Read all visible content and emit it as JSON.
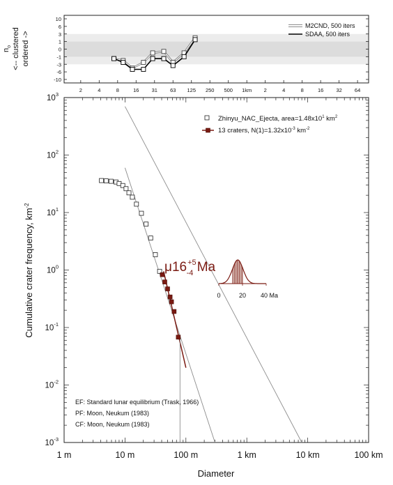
{
  "chart_data": [
    {
      "type": "line",
      "name": "randomness-analysis",
      "ylabel_lines": [
        "n",
        "<-- clustered",
        "ordered ->"
      ],
      "ylabel_subscript": "o",
      "y_ticks": [
        "10",
        "6",
        "3",
        "1",
        "0",
        "-1",
        "-3",
        "-6",
        "-10"
      ],
      "x_ticks": [
        "2",
        "4",
        "8",
        "16",
        "31",
        "63",
        "125",
        "250",
        "500",
        "1km",
        "2",
        "4",
        "8",
        "16",
        "32",
        "64"
      ],
      "legend": [
        "M2CND, 500 iters",
        "SDAA, 500 iters"
      ],
      "bands": [
        {
          "from": "-3",
          "to": "3",
          "color": "#ececec"
        },
        {
          "from": "-1",
          "to": "1",
          "color": "#dcdcdc"
        }
      ],
      "series": [
        {
          "name": "M2CND, 500 iters",
          "style": "double-gray",
          "x_idx": [
            1.8,
            2.3,
            2.8,
            3.4,
            3.9,
            4.5,
            5.0,
            5.6,
            6.2
          ],
          "values": [
            "-1.5",
            "-2",
            "-4.5",
            "-2.5",
            "-0.5",
            "-0.3",
            "-2.5",
            "-0.5",
            "2"
          ]
        },
        {
          "name": "SDAA, 500 iters",
          "style": "solid-black",
          "x_idx": [
            1.8,
            2.3,
            2.8,
            3.4,
            3.9,
            4.5,
            5.0,
            5.6,
            6.2
          ],
          "values": [
            "-1.5",
            "-2.5",
            "-5",
            "-5",
            "-1.5",
            "-1.5",
            "-3.5",
            "-1",
            "1.5"
          ]
        }
      ]
    },
    {
      "type": "scatter",
      "name": "crater-size-frequency",
      "xlabel": "Diameter",
      "ylabel": "Cumulative crater frequency, km",
      "ylabel_sup": "-2",
      "x_scale": "log",
      "y_scale": "log",
      "xlim": [
        1,
        100000
      ],
      "ylim": [
        0.001,
        1000
      ],
      "x_tick_labels": [
        "1 m",
        "10 m",
        "100 m",
        "1 km",
        "10 km",
        "100 km"
      ],
      "y_tick_labels": [
        {
          "base": "10",
          "exp": "3"
        },
        {
          "base": "10",
          "exp": "2"
        },
        {
          "base": "10",
          "exp": "1"
        },
        {
          "base": "10",
          "exp": "0"
        },
        {
          "base": "10",
          "exp": "-1"
        },
        {
          "base": "10",
          "exp": "-2"
        },
        {
          "base": "10",
          "exp": "-3"
        }
      ],
      "legend": [
        {
          "marker": "open-square",
          "parts": [
            "Zhinyu_NAC_Ejecta, area=1.48x10",
            "1",
            " km",
            "2"
          ]
        },
        {
          "marker": "filled-square-line",
          "parts": [
            "13 craters, N(1)=1.32x10",
            "-3",
            " km",
            "-2"
          ]
        }
      ],
      "notes": [
        "EF: Standard lunar equilibrium (Trask, 1966)",
        "PF: Moon, Neukum (1983)",
        "CF: Moon, Neukum (1983)"
      ],
      "age": {
        "prefix": "μ16",
        "sup": "+5",
        "sub": "-4",
        "unit": " Ma",
        "color": "#7a1a12"
      },
      "age_pdf": {
        "x_ticks": [
          "0",
          "20",
          "40 Ma"
        ],
        "peak_ma": 16,
        "sigma_ma": 4.5,
        "xlim_ma": [
          0,
          40
        ]
      },
      "open_series": {
        "name": "Zhinyu_NAC_Ejecta",
        "x": [
          4.1,
          4.9,
          5.9,
          7.1,
          8.0,
          9.2,
          10.4,
          11.6,
          13.2,
          15.4,
          18.6,
          22.2,
          26.4,
          31.5,
          37.0
        ],
        "y": [
          36,
          35.5,
          35,
          34,
          32,
          29.5,
          26,
          22,
          18.5,
          14,
          9.7,
          6.3,
          3.6,
          1.85,
          0.95
        ]
      },
      "fit_series": {
        "name": "13 craters",
        "x": [
          41,
          45,
          50,
          55,
          58,
          64,
          75
        ],
        "y": [
          0.83,
          0.62,
          0.47,
          0.34,
          0.28,
          0.19,
          0.068
        ],
        "color": "#7a1a12"
      },
      "reference_lines": [
        {
          "name": "EF",
          "points": [
            [
              10,
              700
            ],
            [
              8000,
              0.001
            ]
          ]
        },
        {
          "name": "PF",
          "points": [
            [
              10,
              60
            ],
            [
              300,
              0.001
            ]
          ]
        },
        {
          "name": "fit",
          "points": [
            [
              43,
              0.95
            ],
            [
              100,
              0.02
            ]
          ]
        }
      ],
      "fit_range_x": [
        20,
        80
      ]
    }
  ]
}
